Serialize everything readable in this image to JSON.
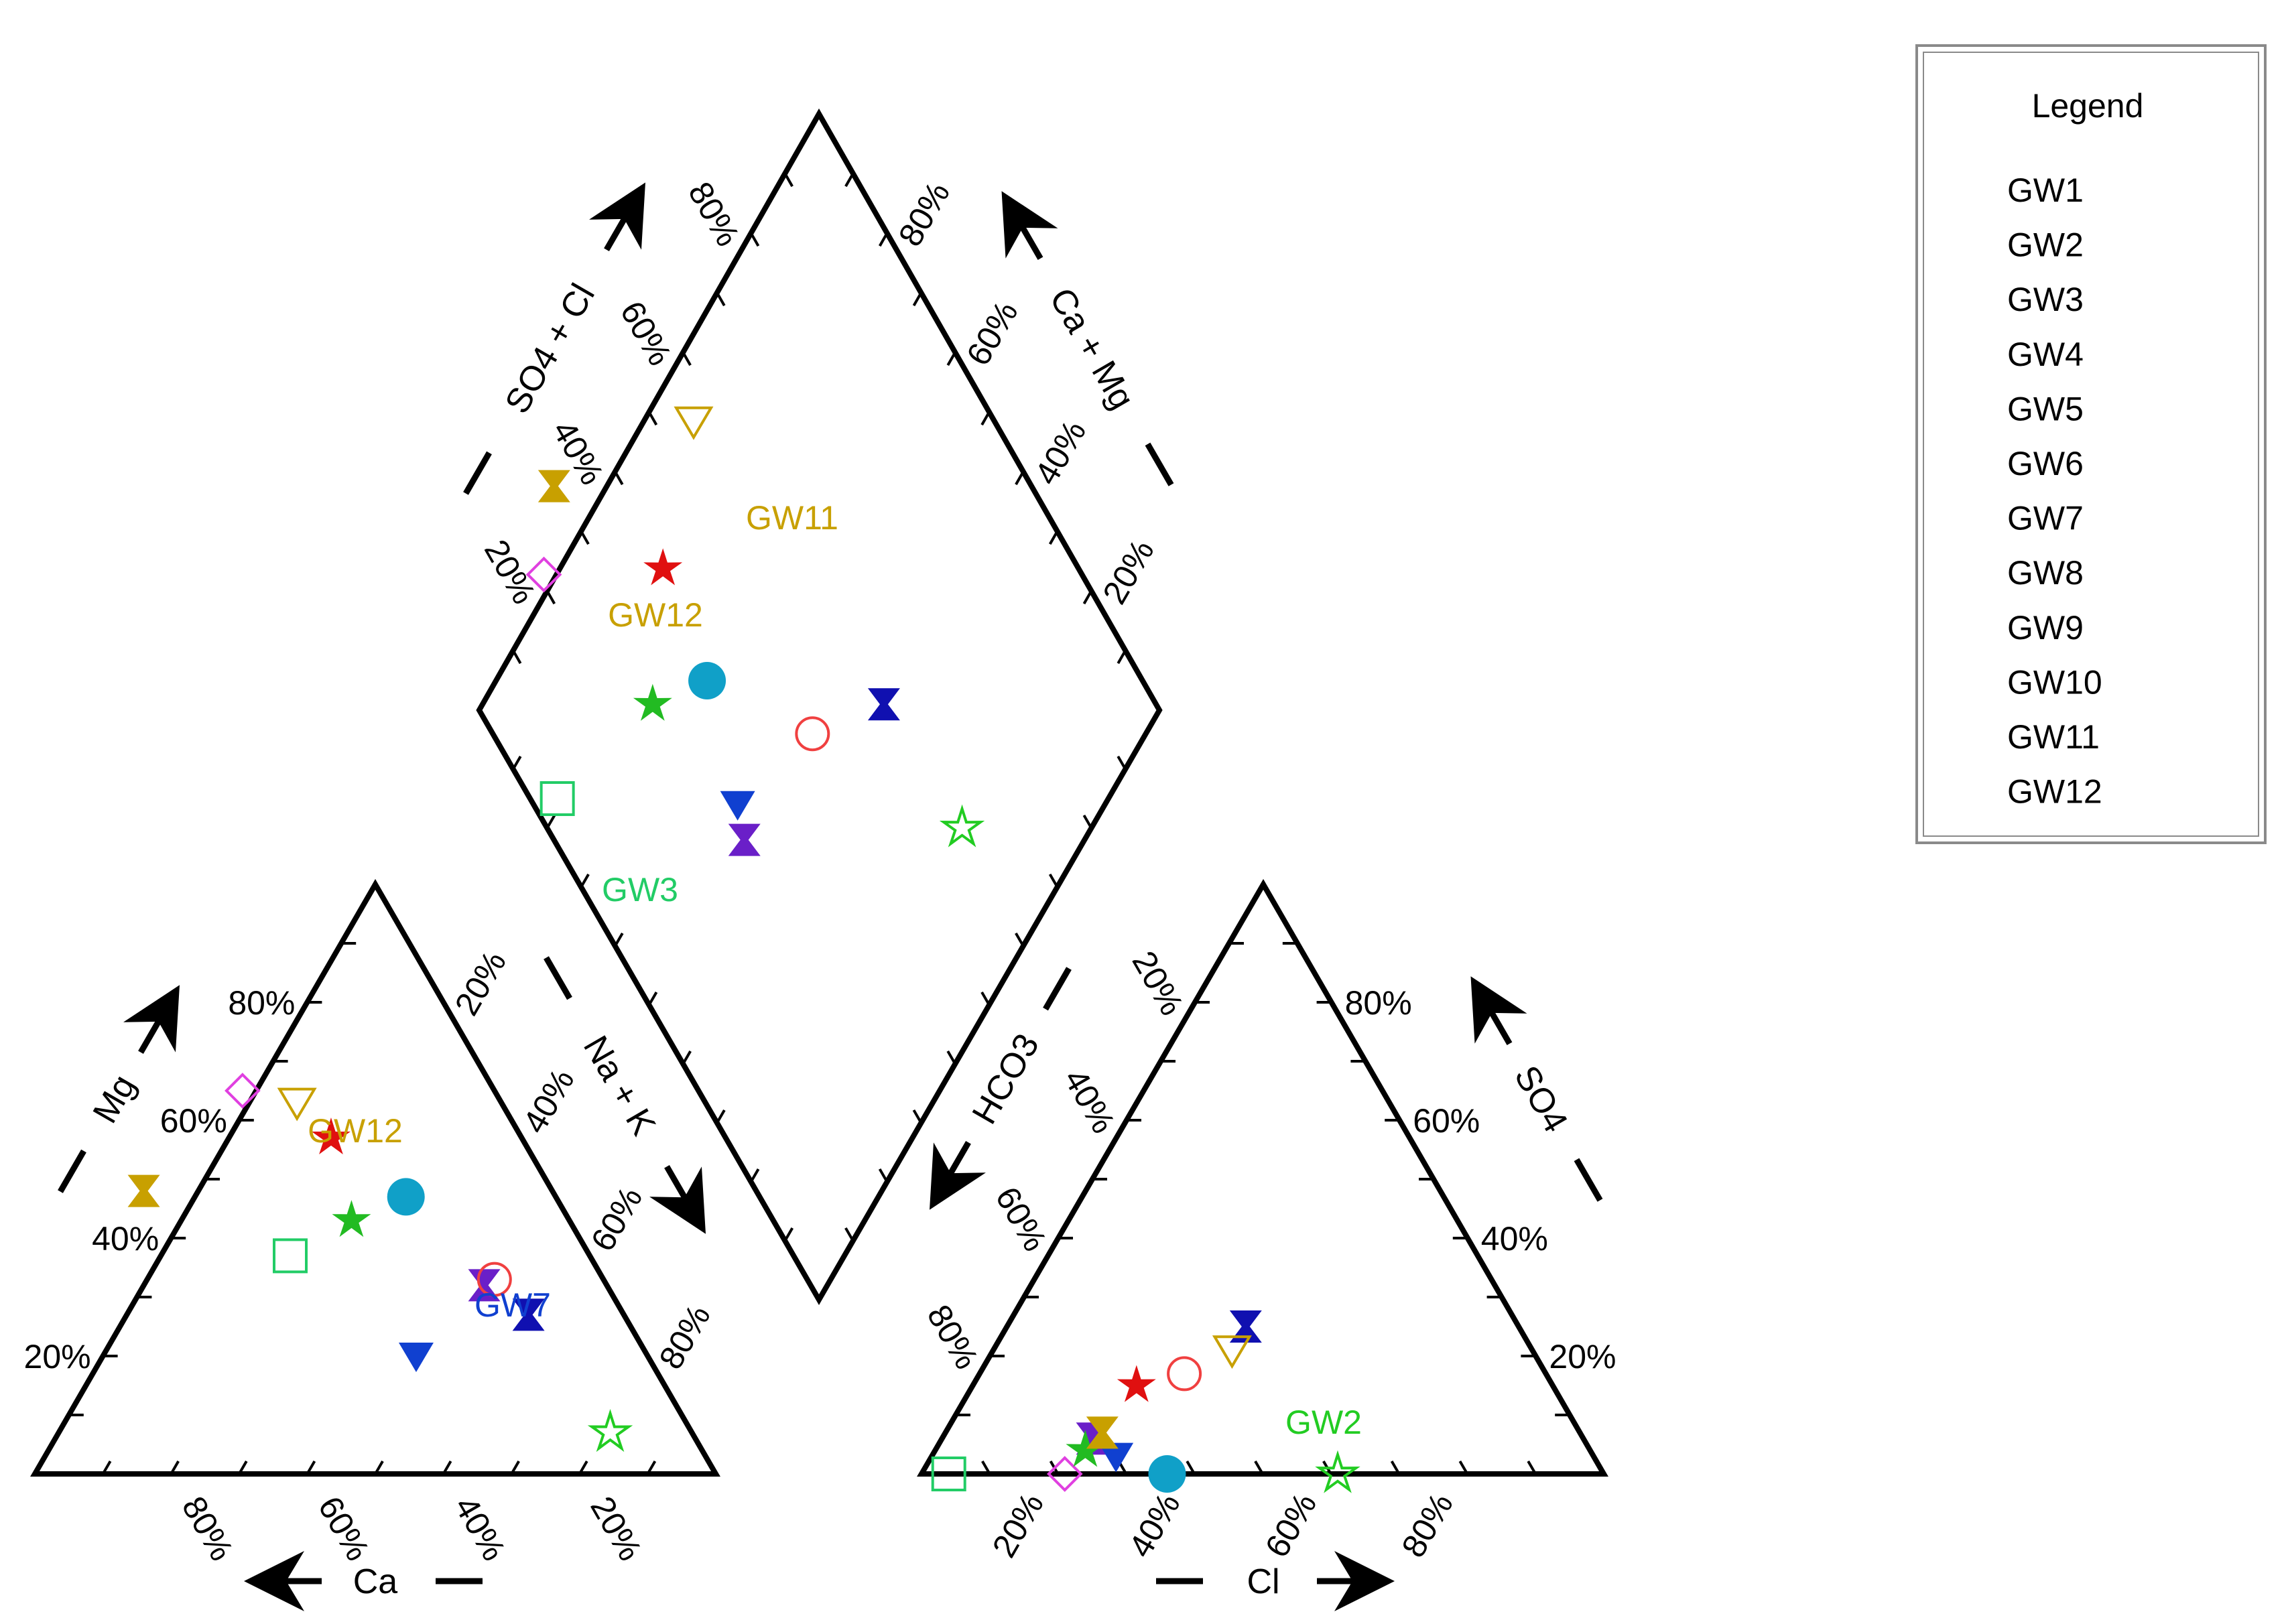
{
  "chart_data": {
    "type": "scatter",
    "subtype": "piper-trilinear",
    "axis_titles": {
      "cation_left": "Mg",
      "cation_bottom": "Ca",
      "cation_right": "Na + K",
      "anion_left": "HCO3",
      "anion_bottom": "Cl",
      "anion_right": "SO4",
      "diamond_upper_left": "SO4 + Cl",
      "diamond_upper_right": "Ca + Mg"
    },
    "tick_labels": [
      "20%",
      "40%",
      "60%",
      "80%"
    ],
    "legend": {
      "title": "Legend",
      "position": "top-right"
    },
    "series": [
      {
        "name": "GW1",
        "marker": "diamond-open",
        "color": "#e040e0",
        "cation": {
          "Ca": 37,
          "Mg": 65,
          "NaK": -2
        },
        "anion": {
          "Cl": 21,
          "SO4": 0,
          "HCO3": 79
        },
        "diamond": {
          "SO4Cl": 21,
          "CaMg": 102
        }
      },
      {
        "name": "GW2",
        "marker": "star-open",
        "color": "#22cc22",
        "cation": {
          "Ca": 12,
          "Mg": 7,
          "NaK": 81
        },
        "anion": {
          "Cl": 61,
          "SO4": 0,
          "HCO3": 39
        },
        "diamond": {
          "SO4Cl": 61,
          "CaMg": 19
        }
      },
      {
        "name": "GW3",
        "marker": "square-open",
        "color": "#22cc66",
        "cation": {
          "Ca": 44,
          "Mg": 37,
          "NaK": 19
        },
        "anion": {
          "Cl": 4,
          "SO4": 0,
          "HCO3": 96
        },
        "diamond": {
          "SO4Cl": 4,
          "CaMg": 81
        }
      },
      {
        "name": "GW4",
        "marker": "hourglass",
        "color": "#6a1fc8",
        "cation": {
          "Ca": 18,
          "Mg": 32,
          "NaK": 50
        },
        "anion": {
          "Cl": 22,
          "SO4": 6,
          "HCO3": 72
        },
        "diamond": {
          "SO4Cl": 28,
          "CaMg": 50
        }
      },
      {
        "name": "GW5",
        "marker": "star-filled",
        "color": "#e01010",
        "cation": {
          "Ca": 28,
          "Mg": 57,
          "NaK": 15
        },
        "anion": {
          "Cl": 24,
          "SO4": 15,
          "HCO3": 61
        },
        "diamond": {
          "SO4Cl": 39,
          "CaMg": 85
        }
      },
      {
        "name": "GW6",
        "marker": "circle-filled",
        "color": "#10a0c8",
        "cation": {
          "Ca": 22,
          "Mg": 47,
          "NaK": 31
        },
        "anion": {
          "Cl": 36,
          "SO4": 0,
          "HCO3": 64
        },
        "diamond": {
          "SO4Cl": 36,
          "CaMg": 69
        }
      },
      {
        "name": "GW7",
        "marker": "triangle-down-filled",
        "color": "#1040d0",
        "cation": {
          "Ca": 34,
          "Mg": 20,
          "NaK": 46
        },
        "anion": {
          "Cl": 27,
          "SO4": 3,
          "HCO3": 70
        },
        "diamond": {
          "SO4Cl": 30,
          "CaMg": 54
        }
      },
      {
        "name": "GW8",
        "marker": "circle-open",
        "color": "#f04040",
        "cation": {
          "Ca": 16,
          "Mg": 33,
          "NaK": 51
        },
        "anion": {
          "Cl": 30,
          "SO4": 17,
          "HCO3": 53
        },
        "diamond": {
          "SO4Cl": 47,
          "CaMg": 49
        }
      },
      {
        "name": "GW9",
        "marker": "hourglass",
        "color": "#1010b0",
        "cation": {
          "Ca": 14,
          "Mg": 27,
          "NaK": 59
        },
        "anion": {
          "Cl": 35,
          "SO4": 25,
          "HCO3": 40
        },
        "diamond": {
          "SO4Cl": 60,
          "CaMg": 41
        }
      },
      {
        "name": "GW10",
        "marker": "star-filled",
        "color": "#22bb22",
        "cation": {
          "Ca": 32,
          "Mg": 43,
          "NaK": 25
        },
        "anion": {
          "Cl": 22,
          "SO4": 4,
          "HCO3": 74
        },
        "diamond": {
          "SO4Cl": 26,
          "CaMg": 75
        }
      },
      {
        "name": "GW11",
        "marker": "triangle-down-open",
        "color": "#c8a000",
        "cation": {
          "Ca": 30,
          "Mg": 63,
          "NaK": 7
        },
        "anion": {
          "Cl": 35,
          "SO4": 21,
          "HCO3": 44
        },
        "diamond": {
          "SO4Cl": 56,
          "CaMg": 93
        }
      },
      {
        "name": "GW12",
        "marker": "hourglass",
        "color": "#c8a000",
        "cation": {
          "Ca": 60,
          "Mg": 48,
          "NaK": -8
        },
        "anion": {
          "Cl": 23,
          "SO4": 7,
          "HCO3": 70
        },
        "diamond": {
          "SO4Cl": 30,
          "CaMg": 108
        }
      }
    ],
    "annotations": [
      {
        "text": "GW12",
        "color": "#c8a000",
        "plot": "cation"
      },
      {
        "text": "GW7",
        "color": "#1040d0",
        "plot": "cation"
      },
      {
        "text": "GW2",
        "color": "#22cc22",
        "plot": "anion"
      },
      {
        "text": "GW11",
        "color": "#c8a000",
        "plot": "diamond"
      },
      {
        "text": "GW12",
        "color": "#c8a000",
        "plot": "diamond"
      },
      {
        "text": "GW3",
        "color": "#22cc66",
        "plot": "diamond"
      }
    ],
    "grid": false
  }
}
